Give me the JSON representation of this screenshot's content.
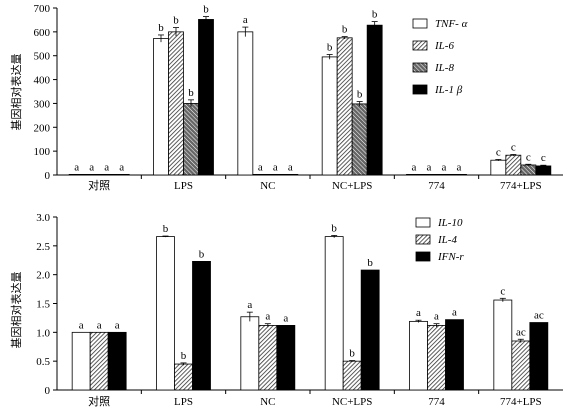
{
  "chart_data": [
    {
      "type": "bar",
      "ylabel": "基因相对表达量",
      "ylim": [
        0,
        700
      ],
      "yticks": [
        "0",
        "100",
        "200",
        "300",
        "400",
        "500",
        "600",
        "700"
      ],
      "ytick_values": [
        0,
        100,
        200,
        300,
        400,
        500,
        600,
        700
      ],
      "categories": [
        "对照",
        "LPS",
        "NC",
        "NC+LPS",
        "774",
        "774+LPS"
      ],
      "legend_position": "top-right",
      "series": [
        {
          "name": "TNF- α",
          "pattern": "white",
          "values": [
            0.5,
            572,
            600,
            495,
            0.5,
            62
          ],
          "errors": [
            0,
            15,
            20,
            10,
            0,
            3
          ],
          "labels": [
            "a",
            "b",
            "a",
            "b",
            "a",
            "c"
          ]
        },
        {
          "name": "IL-6",
          "pattern": "diag",
          "values": [
            0.5,
            600,
            0.5,
            575,
            0.5,
            83
          ],
          "errors": [
            0,
            18,
            0,
            5,
            0,
            3
          ],
          "labels": [
            "a",
            "b",
            "a",
            "b",
            "a",
            "c"
          ]
        },
        {
          "name": "IL-8",
          "pattern": "cross",
          "values": [
            0.5,
            300,
            0.5,
            298,
            0.5,
            42
          ],
          "errors": [
            0,
            15,
            0,
            10,
            0,
            3
          ],
          "labels": [
            "a",
            "b",
            "a",
            "b",
            "a",
            "c"
          ]
        },
        {
          "name": "IL-1 β",
          "pattern": "black",
          "values": [
            0.5,
            652,
            0.5,
            628,
            0.5,
            38
          ],
          "errors": [
            0,
            12,
            0,
            15,
            0,
            3
          ],
          "labels": [
            "a",
            "b",
            "a",
            "b",
            "a",
            "c"
          ]
        }
      ]
    },
    {
      "type": "bar",
      "ylabel": "基因相对表达量",
      "ylim": [
        0,
        3.0
      ],
      "yticks": [
        "0",
        "0.5",
        "1.0",
        "1.5",
        "2.0",
        "2.5",
        "3.0"
      ],
      "ytick_values": [
        0,
        0.5,
        1.0,
        1.5,
        2.0,
        2.5,
        3.0
      ],
      "categories": [
        "对照",
        "LPS",
        "NC",
        "NC+LPS",
        "774",
        "774+LPS"
      ],
      "legend_position": "top-right",
      "series": [
        {
          "name": "IL-10",
          "pattern": "white",
          "values": [
            1.0,
            2.66,
            1.27,
            2.66,
            1.19,
            1.56
          ],
          "errors": [
            0,
            0.01,
            0.08,
            0.02,
            0.02,
            0.03
          ],
          "labels": [
            "a",
            "b",
            "a",
            "b",
            "a",
            "c"
          ]
        },
        {
          "name": "IL-4",
          "pattern": "diag",
          "values": [
            1.0,
            0.45,
            1.12,
            0.5,
            1.12,
            0.85
          ],
          "errors": [
            0,
            0.02,
            0.03,
            0.01,
            0.03,
            0.03
          ],
          "labels": [
            "a",
            "b",
            "a",
            "b",
            "a",
            "ac"
          ]
        },
        {
          "name": "IFN-r",
          "pattern": "black",
          "values": [
            1.0,
            2.23,
            1.12,
            2.08,
            1.22,
            1.17
          ],
          "errors": [
            0,
            0,
            0,
            0,
            0,
            0
          ],
          "labels": [
            "a",
            "b",
            "a",
            "b",
            "a",
            "ac"
          ]
        }
      ]
    }
  ]
}
